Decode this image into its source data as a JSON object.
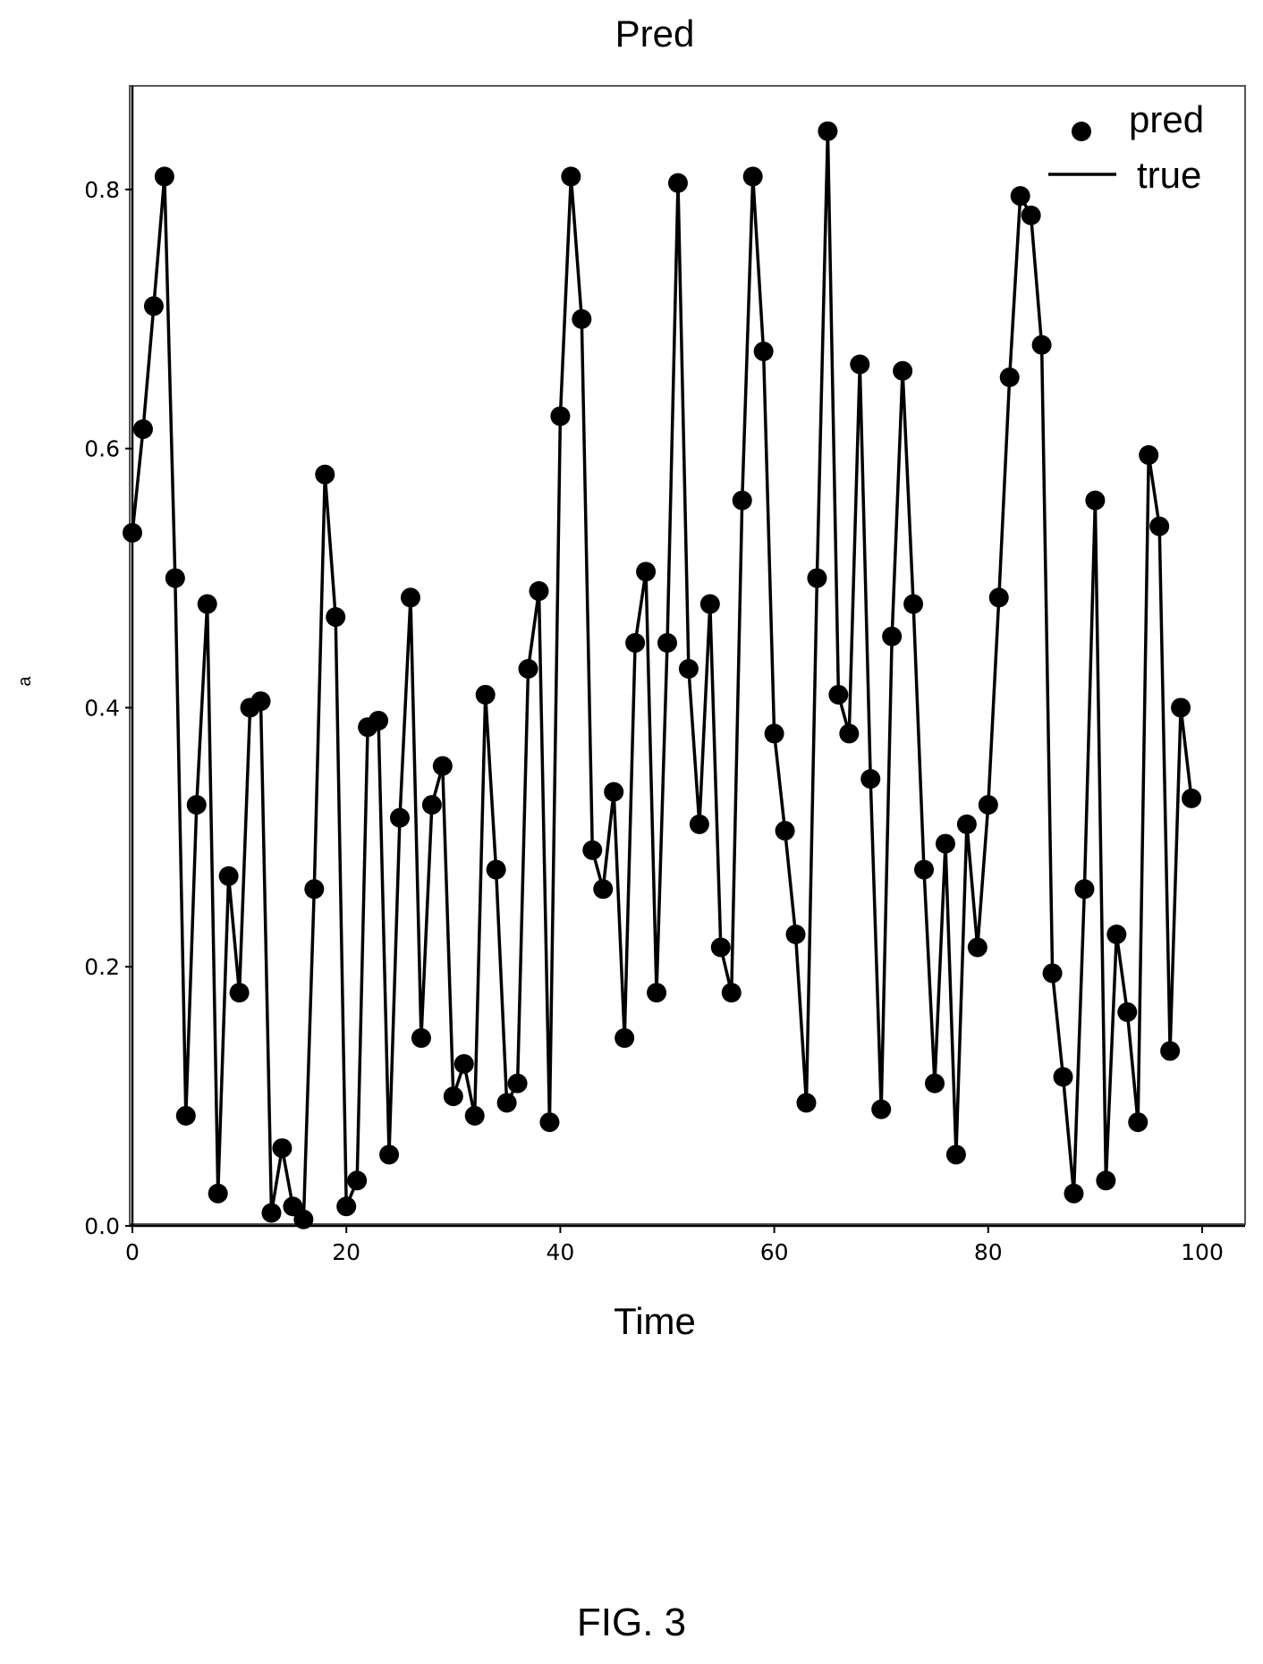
{
  "chart_data": {
    "type": "line",
    "title": "Pred",
    "xlabel": "Time",
    "ylabel": "a",
    "xlim": [
      0,
      100
    ],
    "ylim": [
      0,
      0.88
    ],
    "xticks": [
      0,
      20,
      40,
      60,
      80,
      100
    ],
    "xtick_labels": [
      "0",
      "20",
      "40",
      "60",
      "80",
      "100"
    ],
    "yticks": [
      0.0,
      0.2,
      0.4,
      0.6,
      0.8
    ],
    "ytick_labels": [
      "0.0",
      "0.2",
      "0.4",
      "0.6",
      "0.8"
    ],
    "legend": {
      "position": "top-right",
      "entries": [
        "pred",
        "true"
      ]
    },
    "grid": false,
    "x": [
      0,
      1,
      2,
      3,
      4,
      5,
      6,
      7,
      8,
      9,
      10,
      11,
      12,
      13,
      14,
      15,
      16,
      17,
      18,
      19,
      20,
      21,
      22,
      23,
      24,
      25,
      26,
      27,
      28,
      29,
      30,
      31,
      32,
      33,
      34,
      35,
      36,
      37,
      38,
      39,
      40,
      41,
      42,
      43,
      44,
      45,
      46,
      47,
      48,
      49,
      50,
      51,
      52,
      53,
      54,
      55,
      56,
      57,
      58,
      59,
      60,
      61,
      62,
      63,
      64,
      65,
      66,
      67,
      68,
      69,
      70,
      71,
      72,
      73,
      74,
      75,
      76,
      77,
      78,
      79,
      80,
      81,
      82,
      83,
      84,
      85,
      86,
      87,
      88,
      89,
      90,
      91,
      92,
      93,
      94,
      95,
      96,
      97,
      98,
      99
    ],
    "series": [
      {
        "name": "pred",
        "style": "markers",
        "values": [
          0.535,
          0.615,
          0.71,
          0.81,
          0.5,
          0.085,
          0.325,
          0.48,
          0.025,
          0.27,
          0.18,
          0.4,
          0.405,
          0.01,
          0.06,
          0.015,
          0.005,
          0.26,
          0.58,
          0.47,
          0.015,
          0.035,
          0.385,
          0.39,
          0.055,
          0.315,
          0.485,
          0.145,
          0.325,
          0.355,
          0.1,
          0.125,
          0.085,
          0.41,
          0.275,
          0.095,
          0.11,
          0.43,
          0.49,
          0.08,
          0.625,
          0.81,
          0.7,
          0.29,
          0.26,
          0.335,
          0.145,
          0.45,
          0.505,
          0.18,
          0.45,
          0.805,
          0.43,
          0.31,
          0.48,
          0.215,
          0.18,
          0.56,
          0.81,
          0.675,
          0.38,
          0.305,
          0.225,
          0.095,
          0.5,
          0.845,
          0.41,
          0.38,
          0.665,
          0.345,
          0.09,
          0.455,
          0.66,
          0.48,
          0.275,
          0.11,
          0.295,
          0.055,
          0.31,
          0.215,
          0.325,
          0.485,
          0.655,
          0.795,
          0.78,
          0.68,
          0.195,
          0.115,
          0.025,
          0.26,
          0.56,
          0.035,
          0.225,
          0.165,
          0.08,
          0.595,
          0.54,
          0.135,
          0.4,
          0.33
        ]
      },
      {
        "name": "true",
        "style": "line",
        "values": [
          0.535,
          0.615,
          0.71,
          0.81,
          0.5,
          0.085,
          0.325,
          0.48,
          0.025,
          0.27,
          0.18,
          0.4,
          0.405,
          0.01,
          0.06,
          0.015,
          0.005,
          0.26,
          0.58,
          0.47,
          0.015,
          0.035,
          0.385,
          0.39,
          0.055,
          0.315,
          0.485,
          0.145,
          0.325,
          0.355,
          0.1,
          0.125,
          0.085,
          0.41,
          0.275,
          0.095,
          0.11,
          0.43,
          0.49,
          0.08,
          0.625,
          0.81,
          0.7,
          0.29,
          0.26,
          0.335,
          0.145,
          0.45,
          0.505,
          0.18,
          0.45,
          0.805,
          0.43,
          0.31,
          0.48,
          0.215,
          0.18,
          0.56,
          0.81,
          0.675,
          0.38,
          0.305,
          0.225,
          0.095,
          0.5,
          0.845,
          0.41,
          0.38,
          0.665,
          0.345,
          0.09,
          0.455,
          0.66,
          0.48,
          0.275,
          0.11,
          0.295,
          0.055,
          0.31,
          0.215,
          0.325,
          0.485,
          0.655,
          0.795,
          0.78,
          0.68,
          0.195,
          0.115,
          0.025,
          0.26,
          0.56,
          0.035,
          0.225,
          0.165,
          0.08,
          0.595,
          0.54,
          0.135,
          0.4,
          0.33
        ]
      }
    ]
  },
  "figure": {
    "caption": "FIG. 3",
    "line_color": "#000000",
    "marker_color": "#000000"
  }
}
